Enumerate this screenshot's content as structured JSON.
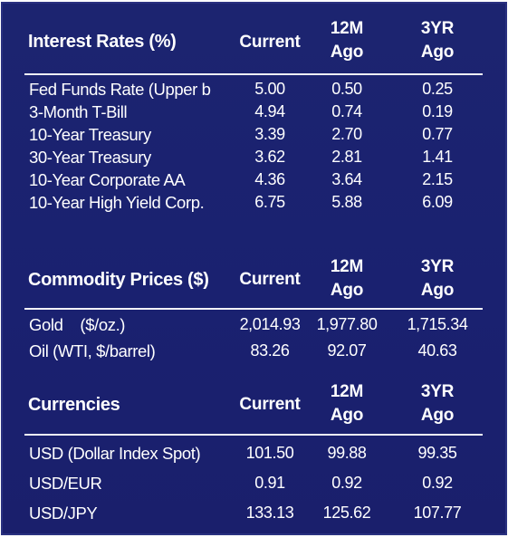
{
  "sections": {
    "interest": {
      "title": "Interest Rates (%)",
      "col_current": "Current",
      "col_12m_line1": "12M",
      "col_12m_line2": "Ago",
      "col_3yr_line1": "3YR",
      "col_3yr_line2": "Ago",
      "rows": [
        {
          "label": "Fed Funds Rate (Upper b",
          "current": "5.00",
          "m12": "0.50",
          "yr3": "0.25"
        },
        {
          "label": "3-Month T-Bill",
          "current": "4.94",
          "m12": "0.74",
          "yr3": "0.19"
        },
        {
          "label": "10-Year Treasury",
          "current": "3.39",
          "m12": "2.70",
          "yr3": "0.77"
        },
        {
          "label": "30-Year Treasury",
          "current": "3.62",
          "m12": "2.81",
          "yr3": "1.41"
        },
        {
          "label": "10-Year Corporate AA",
          "current": "4.36",
          "m12": "3.64",
          "yr3": "2.15"
        },
        {
          "label": "10-Year High Yield Corp.",
          "current": "6.75",
          "m12": "5.88",
          "yr3": "6.09"
        }
      ]
    },
    "commodity": {
      "title": "Commodity Prices ($)",
      "col_current": "Current",
      "col_12m_line1": "12M",
      "col_12m_line2": "Ago",
      "col_3yr_line1": "3YR",
      "col_3yr_line2": "Ago",
      "rows": [
        {
          "label": "Gold    ($/oz.)",
          "current": "2,014.93",
          "m12": "1,977.80",
          "yr3": "1,715.34"
        },
        {
          "label": "Oil (WTI, $/barrel)",
          "current": "83.26",
          "m12": "92.07",
          "yr3": "40.63"
        }
      ]
    },
    "currency": {
      "title": "Currencies",
      "col_current": "Current",
      "col_12m_line1": "12M",
      "col_12m_line2": "Ago",
      "col_3yr_line1": "3YR",
      "col_3yr_line2": "Ago",
      "rows": [
        {
          "label": "USD (Dollar Index Spot)",
          "current": "101.50",
          "m12": "99.88",
          "yr3": "99.35"
        },
        {
          "label": "USD/EUR",
          "current": "0.91",
          "m12": "0.92",
          "yr3": "0.92"
        },
        {
          "label": "USD/JPY",
          "current": "133.13",
          "m12": "125.62",
          "yr3": "107.77"
        }
      ]
    }
  },
  "colors": {
    "background": "#1b236f",
    "text": "#ffffff",
    "rule": "#f2f2f7"
  }
}
